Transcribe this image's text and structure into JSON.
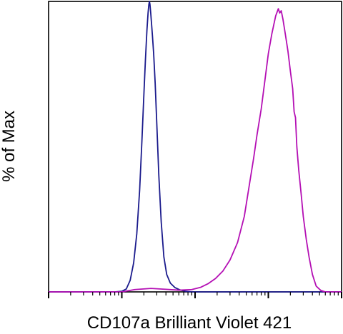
{
  "chart_data": {
    "type": "line",
    "title": "",
    "xlabel": "CD107a Brilliant Violet 421",
    "ylabel": "% of Max",
    "x_scale": "log",
    "xlim": [
      0.1,
      1000
    ],
    "ylim": [
      0,
      100
    ],
    "grid": false,
    "legend": "none",
    "series": [
      {
        "color": "#1a1a8c",
        "points": [
          [
            0.1,
            0
          ],
          [
            0.8,
            0
          ],
          [
            1.0,
            0.2
          ],
          [
            1.15,
            1.0
          ],
          [
            1.3,
            4.0
          ],
          [
            1.45,
            10.0
          ],
          [
            1.6,
            20.0
          ],
          [
            1.75,
            35.0
          ],
          [
            1.88,
            52.0
          ],
          [
            2.0,
            68.0
          ],
          [
            2.1,
            80.0
          ],
          [
            2.2,
            90.0
          ],
          [
            2.28,
            96.0
          ],
          [
            2.34,
            99.0
          ],
          [
            2.38,
            100.0
          ],
          [
            2.42,
            99.0
          ],
          [
            2.48,
            96.0
          ],
          [
            2.55,
            92.0
          ],
          [
            2.62,
            88.0
          ],
          [
            2.72,
            82.0
          ],
          [
            2.85,
            72.0
          ],
          [
            3.0,
            58.0
          ],
          [
            3.2,
            40.0
          ],
          [
            3.45,
            24.0
          ],
          [
            3.75,
            12.0
          ],
          [
            4.1,
            6.0
          ],
          [
            4.6,
            3.0
          ],
          [
            5.3,
            1.5
          ],
          [
            6.2,
            0.7
          ],
          [
            7.5,
            0.2
          ],
          [
            9.0,
            0
          ],
          [
            1000,
            0
          ]
        ]
      },
      {
        "color": "#b40fb4",
        "points": [
          [
            0.1,
            0
          ],
          [
            1.0,
            0
          ],
          [
            1.5,
            0.8
          ],
          [
            2.5,
            1.2
          ],
          [
            4.0,
            0.9
          ],
          [
            6.0,
            0.6
          ],
          [
            9.0,
            0.8
          ],
          [
            12.0,
            1.6
          ],
          [
            15.0,
            2.8
          ],
          [
            19.0,
            4.6
          ],
          [
            24.0,
            7.2
          ],
          [
            30.0,
            11.0
          ],
          [
            38.0,
            17.0
          ],
          [
            47.0,
            26.0
          ],
          [
            56.0,
            38.0
          ],
          [
            63.0,
            46.0
          ],
          [
            70.0,
            54.0
          ],
          [
            80.0,
            63.0
          ],
          [
            90.0,
            73.0
          ],
          [
            100.0,
            82.0
          ],
          [
            112.0,
            89.0
          ],
          [
            126.0,
            95.0
          ],
          [
            137.0,
            97.5
          ],
          [
            143.0,
            96.0
          ],
          [
            150.0,
            96.8
          ],
          [
            158.0,
            94.0
          ],
          [
            170.0,
            89.0
          ],
          [
            185.0,
            83.0
          ],
          [
            200.0,
            76.0
          ],
          [
            215.0,
            70.0
          ],
          [
            225.0,
            62.0
          ],
          [
            235.0,
            60.0
          ],
          [
            245.0,
            50.0
          ],
          [
            260.0,
            42.0
          ],
          [
            280.0,
            34.0
          ],
          [
            300.0,
            26.0
          ],
          [
            330.0,
            18.0
          ],
          [
            360.0,
            12.0
          ],
          [
            400.0,
            6.0
          ],
          [
            450.0,
            2.0
          ],
          [
            520.0,
            0.5
          ],
          [
            600.0,
            0
          ],
          [
            1000,
            0
          ]
        ]
      }
    ]
  }
}
